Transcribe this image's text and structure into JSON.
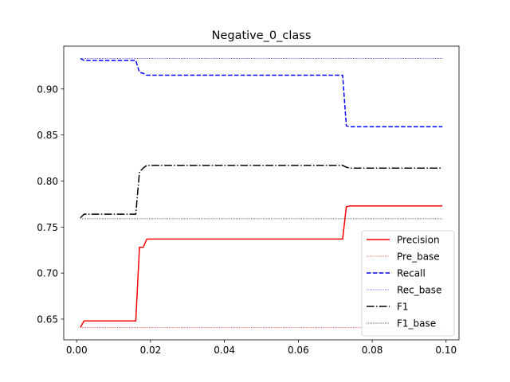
{
  "chart_data": {
    "type": "line",
    "title": "Negative_0_class",
    "xlabel": "",
    "ylabel": "",
    "xlim": [
      -0.0035,
      0.1035
    ],
    "ylim": [
      0.6275,
      0.9465
    ],
    "xticks": [
      0.0,
      0.02,
      0.04,
      0.06,
      0.08,
      0.1
    ],
    "xtick_labels": [
      "0.00",
      "0.02",
      "0.04",
      "0.06",
      "0.08",
      "0.10"
    ],
    "yticks": [
      0.65,
      0.7,
      0.75,
      0.8,
      0.85,
      0.9
    ],
    "ytick_labels": [
      "0.65",
      "0.70",
      "0.75",
      "0.80",
      "0.85",
      "0.90"
    ],
    "grid": false,
    "legend_position": "lower-right",
    "series": [
      {
        "name": "Precision",
        "color": "#ff0000",
        "dash": "solid",
        "x": [
          0.001,
          0.002,
          0.016,
          0.017,
          0.018,
          0.019,
          0.072,
          0.073,
          0.074,
          0.099
        ],
        "y": [
          0.641,
          0.648,
          0.648,
          0.728,
          0.728,
          0.737,
          0.737,
          0.772,
          0.773,
          0.773
        ]
      },
      {
        "name": "Pre_base",
        "color": "#ff0000",
        "dash": "dotted",
        "x": [
          0.001,
          0.099
        ],
        "y": [
          0.641,
          0.641
        ]
      },
      {
        "name": "Recall",
        "color": "#0000ff",
        "dash": "dashed",
        "x": [
          0.001,
          0.002,
          0.016,
          0.017,
          0.018,
          0.019,
          0.072,
          0.073,
          0.074,
          0.099
        ],
        "y": [
          0.933,
          0.931,
          0.931,
          0.918,
          0.917,
          0.915,
          0.915,
          0.86,
          0.859,
          0.859
        ]
      },
      {
        "name": "Rec_base",
        "color": "#0000ff",
        "dash": "dotted",
        "x": [
          0.001,
          0.099
        ],
        "y": [
          0.933,
          0.933
        ]
      },
      {
        "name": "F1",
        "color": "#000000",
        "dash": "dashdot",
        "x": [
          0.001,
          0.002,
          0.016,
          0.017,
          0.018,
          0.019,
          0.072,
          0.073,
          0.074,
          0.099
        ],
        "y": [
          0.76,
          0.764,
          0.764,
          0.81,
          0.814,
          0.817,
          0.817,
          0.815,
          0.814,
          0.814
        ]
      },
      {
        "name": "F1_base",
        "color": "#000000",
        "dash": "dotted",
        "x": [
          0.001,
          0.099
        ],
        "y": [
          0.759,
          0.759
        ]
      }
    ]
  }
}
